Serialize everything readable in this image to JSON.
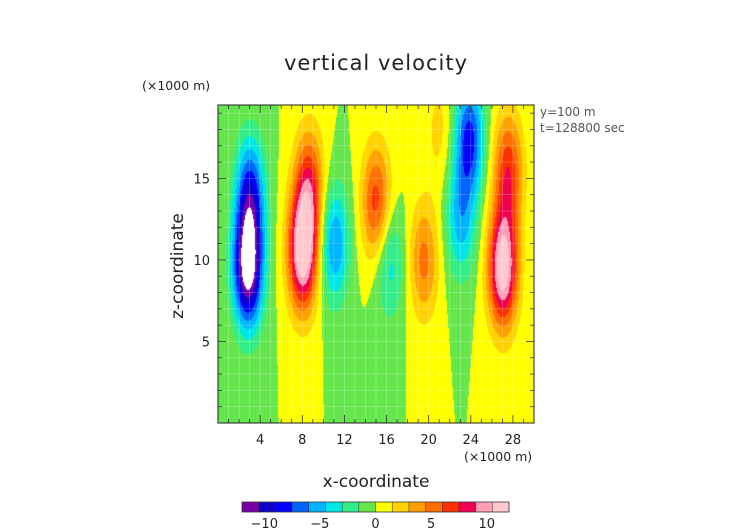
{
  "chart_data": {
    "type": "heatmap",
    "title": "vertical velocity",
    "x_axis": {
      "label": "x-coordinate",
      "unit_label": "(×1000 m)",
      "range": [
        0,
        30
      ],
      "ticks": [
        4,
        8,
        12,
        16,
        20,
        24,
        28
      ]
    },
    "y_axis": {
      "label": "z-coordinate",
      "unit_label": "(×1000 m)",
      "range": [
        0,
        19.5
      ],
      "ticks": [
        5,
        10,
        15
      ]
    },
    "annotations": [
      "y=100 m",
      "t=128800 sec"
    ],
    "colorbar": {
      "ticks": [
        -10,
        -5,
        0,
        5,
        10
      ],
      "range": [
        -12,
        12
      ],
      "colors": [
        "#7a00a8",
        "#1000c8",
        "#0000ff",
        "#0064ff",
        "#00b4ff",
        "#00e6e6",
        "#33ee88",
        "#66e64d",
        "#ffff00",
        "#ffd200",
        "#ffa000",
        "#ff6e00",
        "#ff3000",
        "#f00050",
        "#ff9db4",
        "#ffc8cc"
      ]
    },
    "grid": true,
    "field_features": [
      {
        "x": 2.8,
        "z": 9.5,
        "w": -13
      },
      {
        "x": 3.0,
        "z": 14.0,
        "w": -8
      },
      {
        "x": 8.0,
        "z": 10.5,
        "w": 12
      },
      {
        "x": 8.6,
        "z": 14.5,
        "w": 7
      },
      {
        "x": 11.0,
        "z": 11.0,
        "w": -6
      },
      {
        "x": 15.0,
        "z": 13.5,
        "w": 7
      },
      {
        "x": 16.2,
        "z": 10.0,
        "w": -4
      },
      {
        "x": 19.5,
        "z": 10.0,
        "w": 5
      },
      {
        "x": 23.0,
        "z": 12.5,
        "w": -5
      },
      {
        "x": 23.8,
        "z": 17.5,
        "w": -8
      },
      {
        "x": 21.0,
        "z": 18.0,
        "w": 2
      },
      {
        "x": 27.0,
        "z": 9.5,
        "w": 12
      },
      {
        "x": 27.5,
        "z": 15.5,
        "w": 7
      }
    ]
  }
}
